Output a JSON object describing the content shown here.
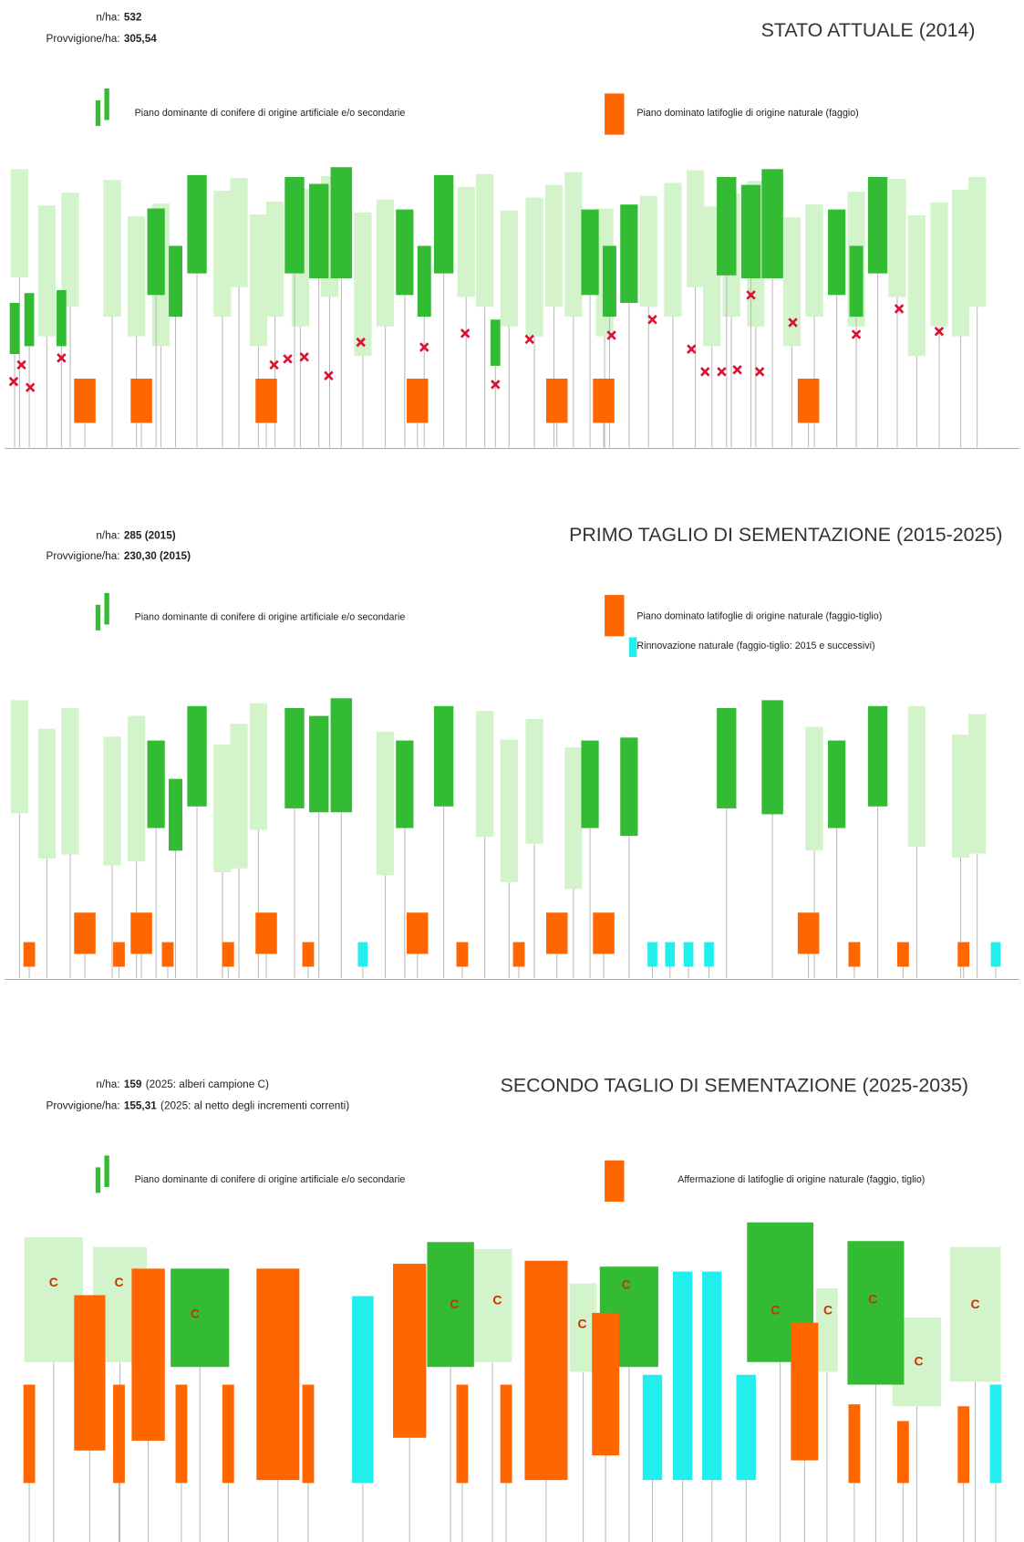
{
  "c_marker": "C",
  "panels": [
    {
      "stats": [
        {
          "label": "n/ha:",
          "value": "532"
        },
        {
          "label": "Provvigione/ha:",
          "value": "305,54"
        }
      ],
      "title": "STATO ATTUALE (2014)",
      "legend": [
        "Piano dominante di conifere di origine artificiale e/o secondarie",
        "Piano dominato latifoglie di origine naturale (faggio)"
      ]
    },
    {
      "stats": [
        {
          "label": "n/ha:",
          "value": "285 (2015)"
        },
        {
          "label": "Provvigione/ha:",
          "value": "230,30 (2015)"
        }
      ],
      "title": "PRIMO TAGLIO DI SEMENTAZIONE (2015-2025)",
      "legend": [
        "Piano dominante di conifere di origine artificiale e/o secondarie",
        "Piano dominato latifoglie di origine naturale (faggio-tiglio)",
        "Rinnovazione naturale (faggio-tiglio: 2015 e successivi)"
      ]
    },
    {
      "stats": [
        {
          "label": "n/ha:",
          "value": "159",
          "note": "(2025: alberi campione C)"
        },
        {
          "label": "Provvigione/ha:",
          "value": "155,31",
          "note": "(2025: al netto degli incrementi correnti)"
        }
      ],
      "title": "SECONDO TAGLIO DI SEMENTAZIONE (2025-2035)",
      "legend": [
        "Piano dominante di conifere di origine artificiale e/o secondarie",
        "Affermazione di latifoglie di origine naturale (faggio, tiglio)"
      ]
    }
  ]
}
